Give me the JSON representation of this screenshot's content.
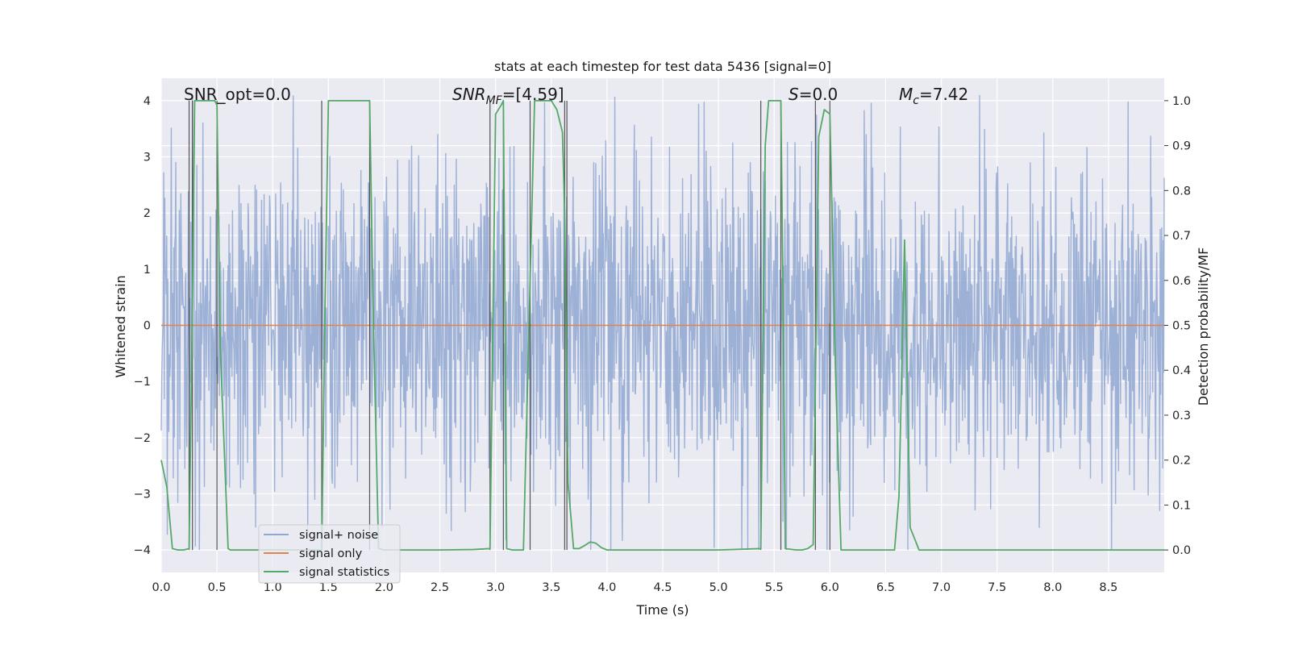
{
  "chart_data": {
    "type": "line",
    "title": "stats at each timestep for test data 5436 [signal=0]",
    "xlabel": "Time (s)",
    "ylabel": "Whitened strain",
    "y2label": "Detection probability/MF",
    "xlim": [
      0.0,
      9.0
    ],
    "ylim": [
      -4.4,
      4.4
    ],
    "y2lim": [
      -0.05,
      1.05
    ],
    "xticks": [
      "0.0",
      "0.5",
      "1.0",
      "1.5",
      "2.0",
      "2.5",
      "3.0",
      "3.5",
      "4.0",
      "4.5",
      "5.0",
      "5.5",
      "6.0",
      "6.5",
      "7.0",
      "7.5",
      "8.0",
      "8.5"
    ],
    "yticks": [
      "4",
      "3",
      "2",
      "1",
      "0",
      "−1",
      "−2",
      "−3",
      "−4"
    ],
    "y2ticks": [
      "1.0",
      "0.9",
      "0.8",
      "0.7",
      "0.6",
      "0.5",
      "0.4",
      "0.3",
      "0.2",
      "0.1",
      "0.0"
    ],
    "grid": true,
    "legend_position": "bottom-left",
    "annotations": {
      "snr_opt": "SNR_opt=0.0",
      "snr_mf_sym": "SNR",
      "snr_mf_sub": "MF",
      "snr_mf_val": "=[4.59]",
      "s_sym": "S",
      "s_val": "=0.0",
      "mc_sym": "M",
      "mc_sub": "c",
      "mc_val": "=7.42"
    },
    "series": [
      {
        "name": "signal+ noise",
        "color": "#8fa7d1",
        "axis": "left",
        "description": "whitened strain noise, roughly gaussian, amplitude mostly within ±2.5 with spikes to ±4",
        "noise_std": 1.0,
        "n_samples": 2000
      },
      {
        "name": "signal only",
        "color": "#dd8452",
        "axis": "left",
        "x": [
          0.0,
          9.0
        ],
        "y": [
          0.0,
          0.0
        ]
      },
      {
        "name": "signal statistics",
        "color": "#55a868",
        "axis": "right",
        "x": [
          0.0,
          0.05,
          0.1,
          0.15,
          0.2,
          0.25,
          0.28,
          0.3,
          0.33,
          0.4,
          0.45,
          0.48,
          0.5,
          0.53,
          0.6,
          0.62,
          0.65,
          0.7,
          0.8,
          0.9,
          1.0,
          1.1,
          1.2,
          1.3,
          1.4,
          1.44,
          1.47,
          1.5,
          1.55,
          1.6,
          1.7,
          1.8,
          1.87,
          1.9,
          1.95,
          2.0,
          2.1,
          2.2,
          2.5,
          2.8,
          2.95,
          3.0,
          3.05,
          3.07,
          3.1,
          3.15,
          3.2,
          3.25,
          3.3,
          3.35,
          3.4,
          3.45,
          3.5,
          3.55,
          3.6,
          3.62,
          3.65,
          3.7,
          3.75,
          3.8,
          3.85,
          3.9,
          3.95,
          4.0,
          4.5,
          5.0,
          5.38,
          5.42,
          5.45,
          5.5,
          5.53,
          5.56,
          5.58,
          5.6,
          5.7,
          5.75,
          5.8,
          5.85,
          5.9,
          5.95,
          6.0,
          6.05,
          6.1,
          6.2,
          6.5,
          6.58,
          6.62,
          6.67,
          6.72,
          6.76,
          6.8,
          6.85,
          7.0,
          8.0,
          9.0
        ],
        "y": [
          0.2,
          0.14,
          0.003,
          0.0,
          0.0,
          0.003,
          0.55,
          1.0,
          1.0,
          1.0,
          1.0,
          1.0,
          0.99,
          0.45,
          0.003,
          0.0,
          0.0,
          0.0,
          0.0,
          0.0,
          0.0,
          0.0,
          0.0,
          0.0,
          0.0,
          0.0,
          0.55,
          1.0,
          1.0,
          1.0,
          1.0,
          1.0,
          1.0,
          0.55,
          0.003,
          0.0,
          0.0,
          0.0,
          0.0,
          0.001,
          0.003,
          0.97,
          0.99,
          1.0,
          0.003,
          0.0,
          0.0,
          0.0,
          0.5,
          1.0,
          1.0,
          1.0,
          1.0,
          0.98,
          0.93,
          0.75,
          0.15,
          0.003,
          0.003,
          0.01,
          0.018,
          0.015,
          0.005,
          0.0,
          0.0,
          0.0,
          0.003,
          0.9,
          1.0,
          1.0,
          1.0,
          1.0,
          0.55,
          0.003,
          0.0,
          0.0,
          0.003,
          0.012,
          0.92,
          0.98,
          0.97,
          0.4,
          0.0,
          0.0,
          0.0,
          0.0,
          0.12,
          0.69,
          0.05,
          0.025,
          0.0,
          0.0,
          0.0,
          0.0,
          0.0
        ]
      }
    ],
    "vertical_lines_x": [
      0.25,
      0.28,
      0.5,
      1.44,
      1.87,
      2.95,
      3.07,
      3.31,
      3.62,
      3.64,
      5.38,
      5.56,
      5.87,
      6.0
    ]
  }
}
